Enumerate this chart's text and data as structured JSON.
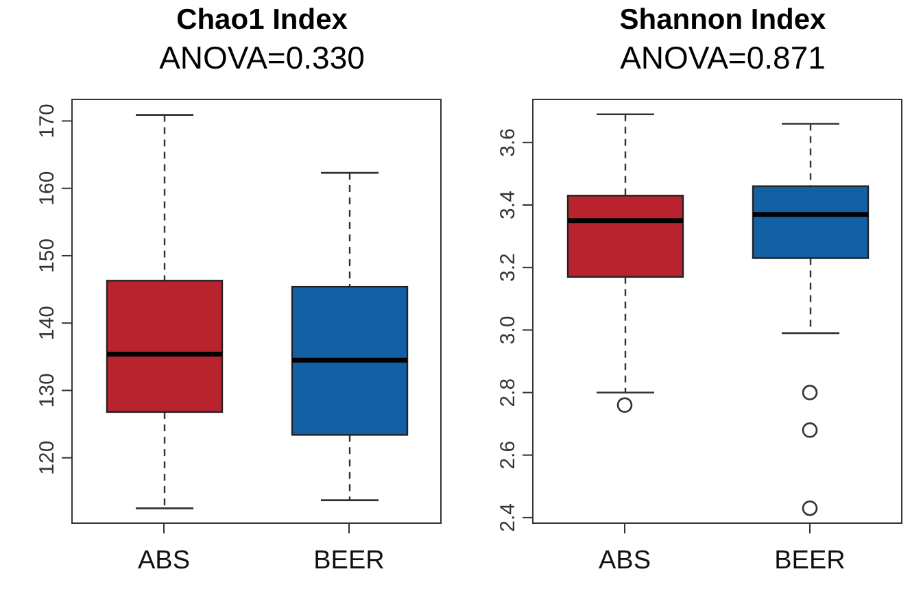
{
  "chart_data": [
    {
      "type": "box",
      "title": "Chao1 Index",
      "subtitle": "ANOVA=0.330",
      "categories": [
        "ABS",
        "BEER"
      ],
      "colors": [
        "#b8232e",
        "#1360a4"
      ],
      "boxes": [
        {
          "low": 112.5,
          "q1": 126.8,
          "median": 135.4,
          "q3": 146.3,
          "high": 170.9
        },
        {
          "low": 113.7,
          "q1": 123.4,
          "median": 134.5,
          "q3": 145.4,
          "high": 162.3
        }
      ],
      "ylim": [
        110.2,
        173.3
      ],
      "yticks": [
        120,
        130,
        140,
        150,
        160,
        170
      ],
      "grid": false
    },
    {
      "type": "box",
      "title": "Shannon Index",
      "subtitle": "ANOVA=0.871",
      "categories": [
        "ABS",
        "BEER"
      ],
      "colors": [
        "#b8232e",
        "#1360a4"
      ],
      "boxes": [
        {
          "low": 2.8,
          "q1": 3.17,
          "median": 3.35,
          "q3": 3.43,
          "high": 3.69,
          "outliers": [
            2.76
          ]
        },
        {
          "low": 2.99,
          "q1": 3.23,
          "median": 3.37,
          "q3": 3.46,
          "high": 3.66,
          "outliers": [
            2.8,
            2.68,
            2.43
          ]
        }
      ],
      "ylim": [
        2.38,
        3.74
      ],
      "yticks": [
        2.4,
        2.6,
        2.8,
        {
          "value": 3,
          "label": "3.0"
        },
        3.2,
        3.4,
        3.6
      ],
      "grid": false
    }
  ]
}
